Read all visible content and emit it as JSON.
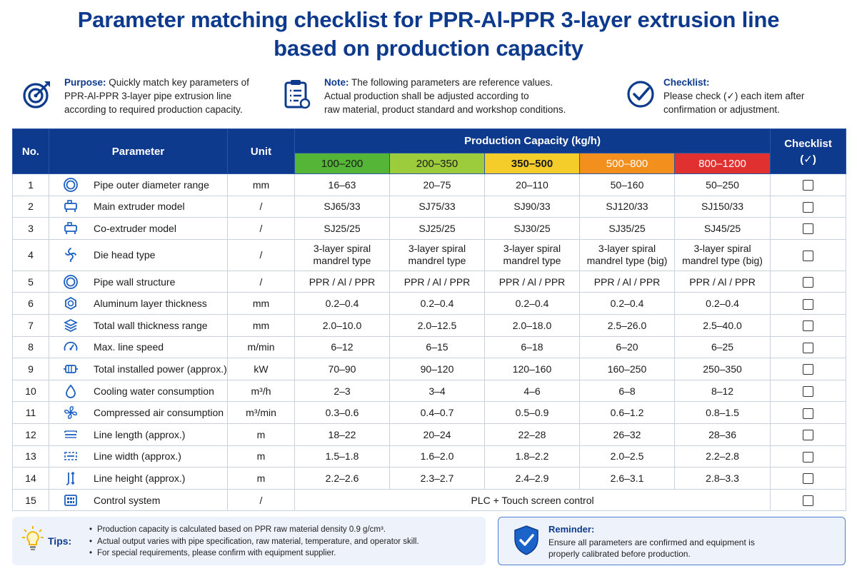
{
  "title_line1": "Parameter matching checklist for PPR-Al-PPR 3-layer extrusion line",
  "title_line2": "based on production capacity",
  "info": {
    "purpose_label": "Purpose:",
    "purpose_l1": " Quickly match key parameters of",
    "purpose_l2": "PPR-Al-PPR 3-layer pipe extrusion line",
    "purpose_l3": "according to required production capacity.",
    "note_label": "Note:",
    "note_l1": " The following parameters are reference values.",
    "note_l2": "Actual production shall be adjusted according to",
    "note_l3": "raw material, product standard and workshop conditions.",
    "checklist_label": "Checklist:",
    "checklist_l1": "Please check (✓) each item after",
    "checklist_l2": "confirmation or adjustment."
  },
  "table": {
    "col_no": "No.",
    "col_param": "Parameter",
    "col_unit": "Unit",
    "col_capacity": "Production Capacity (kg/h)",
    "col_checklist_l1": "Checklist",
    "col_checklist_l2": "(✓)",
    "capacities": [
      "100–200",
      "200–350",
      "350–500",
      "500–800",
      "800–1200"
    ],
    "rows": [
      {
        "no": "1",
        "icon": "concentric-circle-icon",
        "param": "Pipe outer diameter range",
        "unit": "mm",
        "values": [
          "16–63",
          "20–75",
          "20–110",
          "50–160",
          "50–250"
        ]
      },
      {
        "no": "2",
        "icon": "extruder-icon",
        "param": "Main extruder model",
        "unit": "/",
        "values": [
          "SJ65/33",
          "SJ75/33",
          "SJ90/33",
          "SJ120/33",
          "SJ150/33"
        ]
      },
      {
        "no": "3",
        "icon": "extruder-icon",
        "param": "Co-extruder model",
        "unit": "/",
        "values": [
          "SJ25/25",
          "SJ25/25",
          "SJ30/25",
          "SJ35/25",
          "SJ45/25"
        ]
      },
      {
        "no": "4",
        "icon": "spiral-die-icon",
        "param": "Die head type",
        "unit": "/",
        "values": [
          [
            "3-layer spiral",
            "mandrel type"
          ],
          [
            "3-layer spiral",
            "mandrel type"
          ],
          [
            "3-layer spiral",
            "mandrel type"
          ],
          [
            "3-layer spiral",
            "mandrel type (big)"
          ],
          [
            "3-layer spiral",
            "mandrel type (big)"
          ]
        ]
      },
      {
        "no": "5",
        "icon": "concentric-circle-icon",
        "param": "Pipe wall structure",
        "unit": "/",
        "values": [
          "PPR / Al / PPR",
          "PPR / Al / PPR",
          "PPR / Al / PPR",
          "PPR / Al / PPR",
          "PPR / Al / PPR"
        ]
      },
      {
        "no": "6",
        "icon": "aluminum-layer-icon",
        "param": "Aluminum layer thickness",
        "unit": "mm",
        "values": [
          "0.2–0.4",
          "0.2–0.4",
          "0.2–0.4",
          "0.2–0.4",
          "0.2–0.4"
        ]
      },
      {
        "no": "7",
        "icon": "layers-icon",
        "param": "Total wall thickness range",
        "unit": "mm",
        "values": [
          "2.0–10.0",
          "2.0–12.5",
          "2.0–18.0",
          "2.5–26.0",
          "2.5–40.0"
        ]
      },
      {
        "no": "8",
        "icon": "speedometer-icon",
        "param": "Max. line speed",
        "unit": "m/min",
        "values": [
          "6–12",
          "6–15",
          "6–18",
          "6–20",
          "6–25"
        ]
      },
      {
        "no": "9",
        "icon": "motor-icon",
        "param": "Total installed power (approx.)",
        "unit": "kW",
        "values": [
          "70–90",
          "90–120",
          "120–160",
          "160–250",
          "250–350"
        ]
      },
      {
        "no": "10",
        "icon": "water-drop-icon",
        "param": "Cooling water consumption",
        "unit": "m³/h",
        "values": [
          "2–3",
          "3–4",
          "4–6",
          "6–8",
          "8–12"
        ]
      },
      {
        "no": "11",
        "icon": "fan-icon",
        "param": "Compressed air consumption",
        "unit": "m³/min",
        "values": [
          "0.3–0.6",
          "0.4–0.7",
          "0.5–0.9",
          "0.6–1.2",
          "0.8–1.5"
        ]
      },
      {
        "no": "12",
        "icon": "length-icon",
        "param": "Line length (approx.)",
        "unit": "m",
        "values": [
          "18–22",
          "20–24",
          "22–28",
          "26–32",
          "28–36"
        ]
      },
      {
        "no": "13",
        "icon": "width-icon",
        "param": "Line width (approx.)",
        "unit": "m",
        "values": [
          "1.5–1.8",
          "1.6–2.0",
          "1.8–2.2",
          "2.0–2.5",
          "2.2–2.8"
        ]
      },
      {
        "no": "14",
        "icon": "height-icon",
        "param": "Line height (approx.)",
        "unit": "m",
        "values": [
          "2.2–2.6",
          "2.3–2.7",
          "2.4–2.9",
          "2.6–3.1",
          "2.8–3.3"
        ]
      },
      {
        "no": "15",
        "icon": "control-panel-icon",
        "param": "Control system",
        "unit": "/",
        "span_value": "PLC + Touch screen control"
      }
    ]
  },
  "tips": {
    "label": "Tips:",
    "items": [
      "Production capacity is calculated based on PPR raw material density 0.9 g/cm³.",
      "Actual output varies with pipe specification, raw material, temperature, and operator skill.",
      "For special requirements, please confirm with equipment supplier."
    ]
  },
  "reminder": {
    "title": "Reminder:",
    "text_l1": "Ensure all parameters are confirmed and equipment is",
    "text_l2": "properly calibrated before production."
  },
  "colors": {
    "primary": "#0d3a8c",
    "cap_100_200": "#55b536",
    "cap_200_350": "#9ccc3c",
    "cap_350_500": "#f5cd2a",
    "cap_500_800": "#f38f1c",
    "cap_800_1200": "#e03030"
  }
}
